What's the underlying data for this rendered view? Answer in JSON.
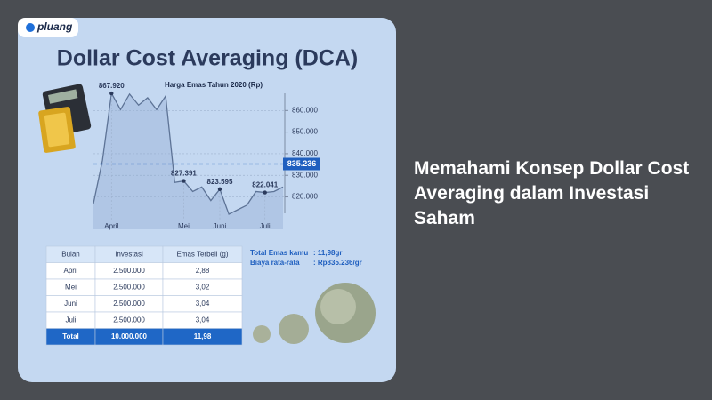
{
  "logo": "pluang",
  "card_title": "Dollar Cost Averaging (DCA)",
  "chart_data": {
    "type": "line",
    "title": "Harga Emas Tahun 2020 (Rp)",
    "categories": [
      null,
      null,
      "April",
      null,
      null,
      null,
      null,
      null,
      null,
      null,
      "Mei",
      null,
      null,
      null,
      "Juni",
      null,
      null,
      null,
      null,
      "Juli",
      null,
      null
    ],
    "values": [
      817000,
      837000,
      867920,
      860400,
      867600,
      862500,
      865900,
      860400,
      866700,
      826700,
      827391,
      822500,
      824600,
      818300,
      823595,
      812000,
      814100,
      816200,
      822500,
      822041,
      822500,
      824600
    ],
    "value_labels": [
      null,
      null,
      "867.920",
      null,
      null,
      null,
      null,
      null,
      null,
      null,
      "827.391",
      null,
      null,
      null,
      "823.595",
      null,
      null,
      null,
      null,
      "822.041",
      null,
      null
    ],
    "color": "#5d7396",
    "ylim": [
      805000,
      870000
    ],
    "yticks": [
      {
        "value": 820000,
        "label": "820.000"
      },
      {
        "value": 830000,
        "label": "830.000"
      },
      {
        "value": 840000,
        "label": "840.000"
      },
      {
        "value": 850000,
        "label": "850.000"
      },
      {
        "value": 860000,
        "label": "860.000"
      }
    ],
    "reference": {
      "value": 835236,
      "label": "835.236"
    },
    "grid": true
  },
  "table": {
    "columns": [
      "Bulan",
      "Investasi",
      "Emas Terbeli (g)"
    ],
    "rows": [
      [
        "April",
        "2.500.000",
        "2,88"
      ],
      [
        "Mei",
        "2.500.000",
        "3,02"
      ],
      [
        "Juni",
        "2.500.000",
        "3,04"
      ],
      [
        "Juli",
        "2.500.000",
        "3,04"
      ]
    ],
    "total": [
      "Total",
      "10.000.000",
      "11,98"
    ]
  },
  "summary": [
    [
      "Total Emas kamu",
      ": 11,98gr"
    ],
    [
      "Biaya rata-rata",
      ": Rp835.236/gr"
    ]
  ],
  "headline": "Memahami Konsep Dollar Cost Averaging dalam Investasi Saham"
}
